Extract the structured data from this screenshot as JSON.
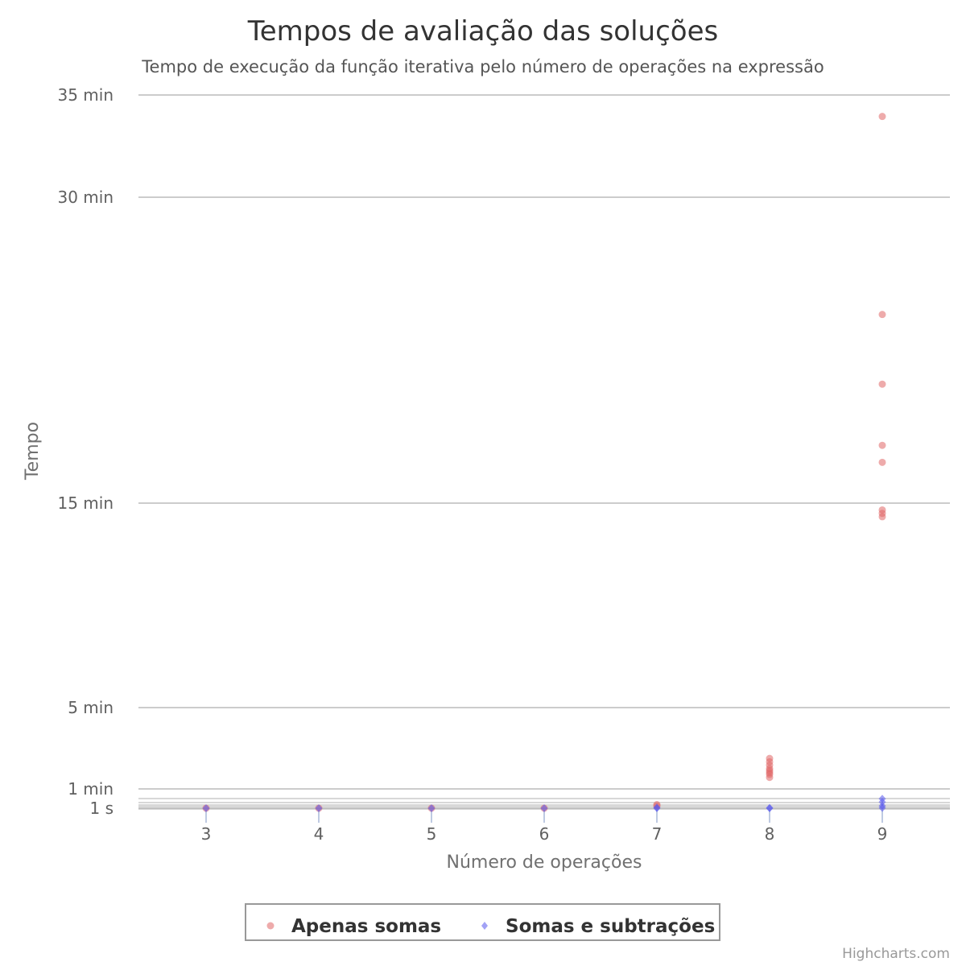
{
  "chart_data": {
    "type": "scatter",
    "title": "Tempos de avaliação das soluções",
    "subtitle": "Tempo de execução da função iterativa pelo número de operações na expressão",
    "xlabel": "Número de operações",
    "ylabel": "Tempo",
    "x_categories": [
      3,
      4,
      5,
      6,
      7,
      8,
      9
    ],
    "y_ticks": [
      {
        "label": "1 s",
        "seconds": 1
      },
      {
        "label": "1 min",
        "seconds": 60
      },
      {
        "label": "5 min",
        "seconds": 300
      },
      {
        "label": "15 min",
        "seconds": 900
      },
      {
        "label": "30 min",
        "seconds": 1800
      },
      {
        "label": "35 min",
        "seconds": 2100
      }
    ],
    "y_unit": "seconds",
    "grid": true,
    "legend_position": "bottom-center",
    "series": [
      {
        "name": "Apenas somas",
        "color": "#e06666",
        "marker": "circle",
        "points": [
          {
            "x": 3,
            "y": 1
          },
          {
            "x": 4,
            "y": 1
          },
          {
            "x": 5,
            "y": 1
          },
          {
            "x": 6,
            "y": 1
          },
          {
            "x": 7,
            "y": 8
          },
          {
            "x": 7,
            "y": 12
          },
          {
            "x": 8,
            "y": 94
          },
          {
            "x": 8,
            "y": 103
          },
          {
            "x": 8,
            "y": 108
          },
          {
            "x": 8,
            "y": 114
          },
          {
            "x": 8,
            "y": 120
          },
          {
            "x": 8,
            "y": 130
          },
          {
            "x": 8,
            "y": 140
          },
          {
            "x": 8,
            "y": 150
          },
          {
            "x": 9,
            "y": 860
          },
          {
            "x": 9,
            "y": 870
          },
          {
            "x": 9,
            "y": 880
          },
          {
            "x": 9,
            "y": 1020
          },
          {
            "x": 9,
            "y": 1070
          },
          {
            "x": 9,
            "y": 1250
          },
          {
            "x": 9,
            "y": 1455
          },
          {
            "x": 9,
            "y": 2037
          }
        ]
      },
      {
        "name": "Somas e subtrações",
        "color": "#5555ee",
        "marker": "diamond",
        "points": [
          {
            "x": 3,
            "y": 1
          },
          {
            "x": 4,
            "y": 1
          },
          {
            "x": 5,
            "y": 1
          },
          {
            "x": 6,
            "y": 1
          },
          {
            "x": 7,
            "y": 1
          },
          {
            "x": 7,
            "y": 3
          },
          {
            "x": 8,
            "y": 1
          },
          {
            "x": 8,
            "y": 2
          },
          {
            "x": 9,
            "y": 2
          },
          {
            "x": 9,
            "y": 8
          },
          {
            "x": 9,
            "y": 20
          },
          {
            "x": 9,
            "y": 30
          }
        ]
      }
    ]
  },
  "credits": "Highcharts.com"
}
